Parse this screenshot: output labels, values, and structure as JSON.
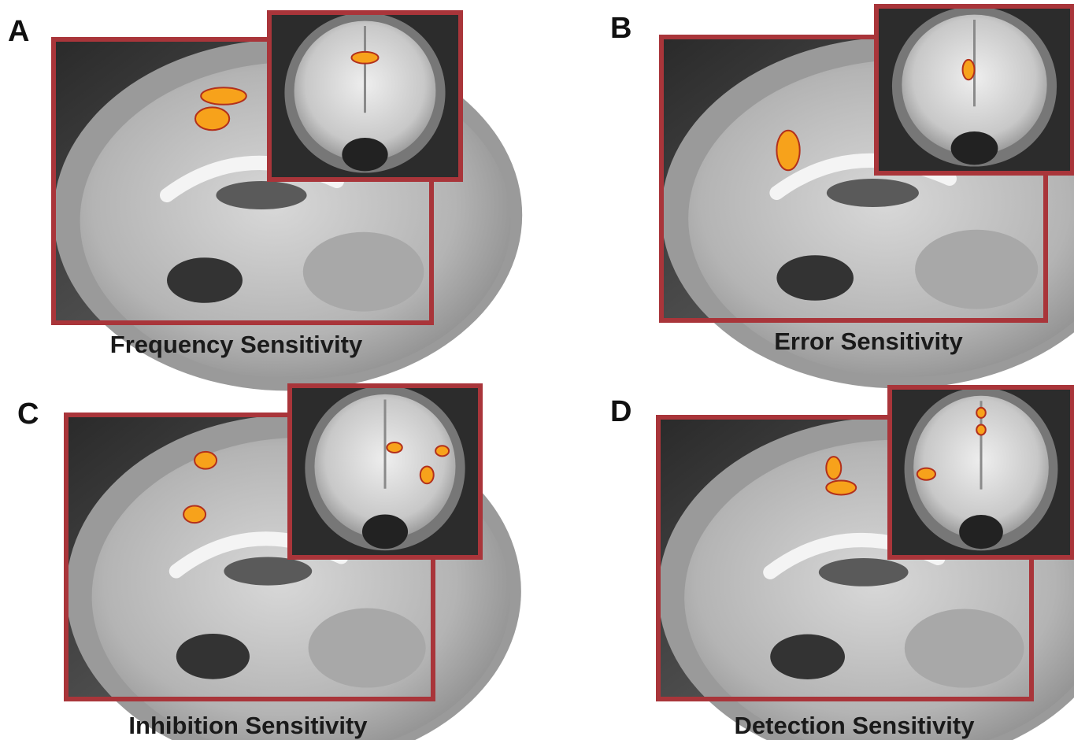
{
  "panels": [
    {
      "letter": "A",
      "caption": "Frequency Sensitivity"
    },
    {
      "letter": "B",
      "caption": "Error Sensitivity"
    },
    {
      "letter": "C",
      "caption": "Inhibition Sensitivity"
    },
    {
      "letter": "D",
      "caption": "Detection Sensitivity"
    }
  ]
}
